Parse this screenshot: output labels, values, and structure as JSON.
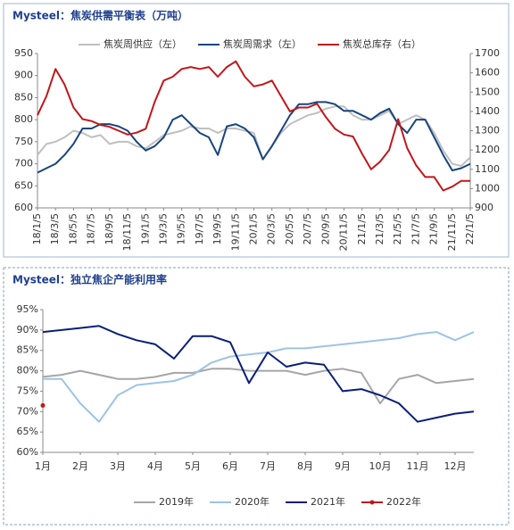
{
  "chart_data": [
    {
      "type": "line",
      "title": "Mysteel：焦炭供需平衡表（万吨）",
      "categories": [
        "18/1/5",
        null,
        "18/3/5",
        null,
        "18/5/5",
        null,
        "18/7/5",
        null,
        "18/9/5",
        null,
        "18/11/5",
        null,
        "19/1/5",
        null,
        "19/3/5",
        null,
        "19/5/5",
        null,
        "19/7/5",
        null,
        "19/9/5",
        null,
        "19/11/5",
        null,
        "20/1/5",
        null,
        "20/3/5",
        null,
        "20/5/5",
        null,
        "20/7/5",
        null,
        "20/9/5",
        null,
        "20/11/5",
        null,
        "21/1/5",
        null,
        "21/3/5",
        null,
        "21/5/5",
        null,
        "21/7/5",
        null,
        "21/9/5",
        null,
        "21/11/5",
        null,
        "22/1/5"
      ],
      "series": [
        {
          "name": "焦炭周供应（左）",
          "color": "#bfbfbf",
          "values": [
            720,
            745,
            750,
            760,
            775,
            770,
            760,
            765,
            745,
            750,
            750,
            740,
            735,
            750,
            765,
            770,
            775,
            785,
            780,
            780,
            770,
            780,
            780,
            775,
            770,
            710,
            740,
            770,
            790,
            800,
            810,
            815,
            825,
            830,
            830,
            810,
            800,
            800,
            810,
            820,
            790,
            800,
            810,
            800,
            770,
            730,
            700,
            695,
            715
          ]
        },
        {
          "name": "焦炭周需求（左）",
          "color": "#17457f",
          "values": [
            680,
            690,
            700,
            720,
            745,
            780,
            780,
            790,
            790,
            785,
            775,
            750,
            730,
            740,
            760,
            800,
            810,
            790,
            770,
            760,
            720,
            785,
            790,
            780,
            760,
            710,
            740,
            775,
            810,
            835,
            835,
            840,
            840,
            835,
            820,
            820,
            810,
            800,
            815,
            825,
            790,
            770,
            800,
            800,
            760,
            720,
            685,
            690,
            700
          ]
        },
        {
          "name": "焦炭总库存（右）",
          "color": "#c0171c",
          "axis": "y2",
          "values": [
            1380,
            1480,
            1620,
            1540,
            1420,
            1360,
            1350,
            1330,
            1320,
            1300,
            1280,
            1290,
            1310,
            1450,
            1560,
            1580,
            1620,
            1630,
            1620,
            1630,
            1580,
            1630,
            1660,
            1580,
            1530,
            1540,
            1560,
            1480,
            1400,
            1420,
            1420,
            1440,
            1370,
            1310,
            1280,
            1270,
            1180,
            1100,
            1140,
            1200,
            1360,
            1210,
            1120,
            1060,
            1060,
            990,
            1010,
            1040,
            1040
          ]
        }
      ],
      "ylim": [
        600,
        950
      ],
      "yticks": [
        600,
        650,
        700,
        750,
        800,
        850,
        900,
        950
      ],
      "y2lim": [
        900,
        1700
      ],
      "y2ticks": [
        900,
        1000,
        1100,
        1200,
        1300,
        1400,
        1500,
        1600,
        1700
      ],
      "legend": "top"
    },
    {
      "type": "line",
      "title": "Mysteel：独立焦企产能利用率",
      "categories": [
        "1月",
        null,
        "2月",
        null,
        "3月",
        null,
        "4月",
        null,
        "5月",
        null,
        "6月",
        null,
        "7月",
        null,
        "8月",
        null,
        "9月",
        null,
        "10月",
        null,
        "11月",
        null,
        "12月",
        null
      ],
      "series": [
        {
          "name": "2019年",
          "color": "#a6a6a6",
          "values": [
            78.5,
            79,
            80,
            79,
            78,
            78,
            78.5,
            79.5,
            79.5,
            80.5,
            80.5,
            80,
            80,
            80,
            79,
            80,
            80.5,
            79.5,
            72,
            78,
            79,
            77,
            77.5,
            78
          ]
        },
        {
          "name": "2020年",
          "color": "#9dc3e6",
          "values": [
            78,
            78,
            72,
            67.5,
            74,
            76.5,
            77,
            77.5,
            79,
            82,
            83.5,
            84,
            84.5,
            85.5,
            85.5,
            86,
            86.5,
            87,
            87.5,
            88,
            89,
            89.5,
            87.5,
            89.5
          ]
        },
        {
          "name": "2021年",
          "color": "#0b1f78",
          "values": [
            89.5,
            90,
            90.5,
            91,
            89,
            87.5,
            86.5,
            83,
            88.5,
            88.5,
            87,
            77,
            84.5,
            81,
            82,
            81.5,
            75,
            75.5,
            74,
            72,
            67.5,
            68.5,
            69.5,
            70
          ]
        },
        {
          "name": "2022年",
          "color": "#c0171c",
          "marker": true,
          "values": [
            71.5,
            null,
            null,
            null,
            null,
            null,
            null,
            null,
            null,
            null,
            null,
            null,
            null,
            null,
            null,
            null,
            null,
            null,
            null,
            null,
            null,
            null,
            null,
            null
          ]
        }
      ],
      "ylim": [
        60,
        95
      ],
      "yticks": [
        {
          "value": 60,
          "label": "60%"
        },
        {
          "value": 65,
          "label": "65%"
        },
        {
          "value": 70,
          "label": "70%"
        },
        {
          "value": 75,
          "label": "75%"
        },
        {
          "value": 80,
          "label": "80%"
        },
        {
          "value": 85,
          "label": "85%"
        },
        {
          "value": 90,
          "label": "90%"
        },
        {
          "value": 95,
          "label": "95%"
        }
      ],
      "legend": "bottom"
    }
  ]
}
